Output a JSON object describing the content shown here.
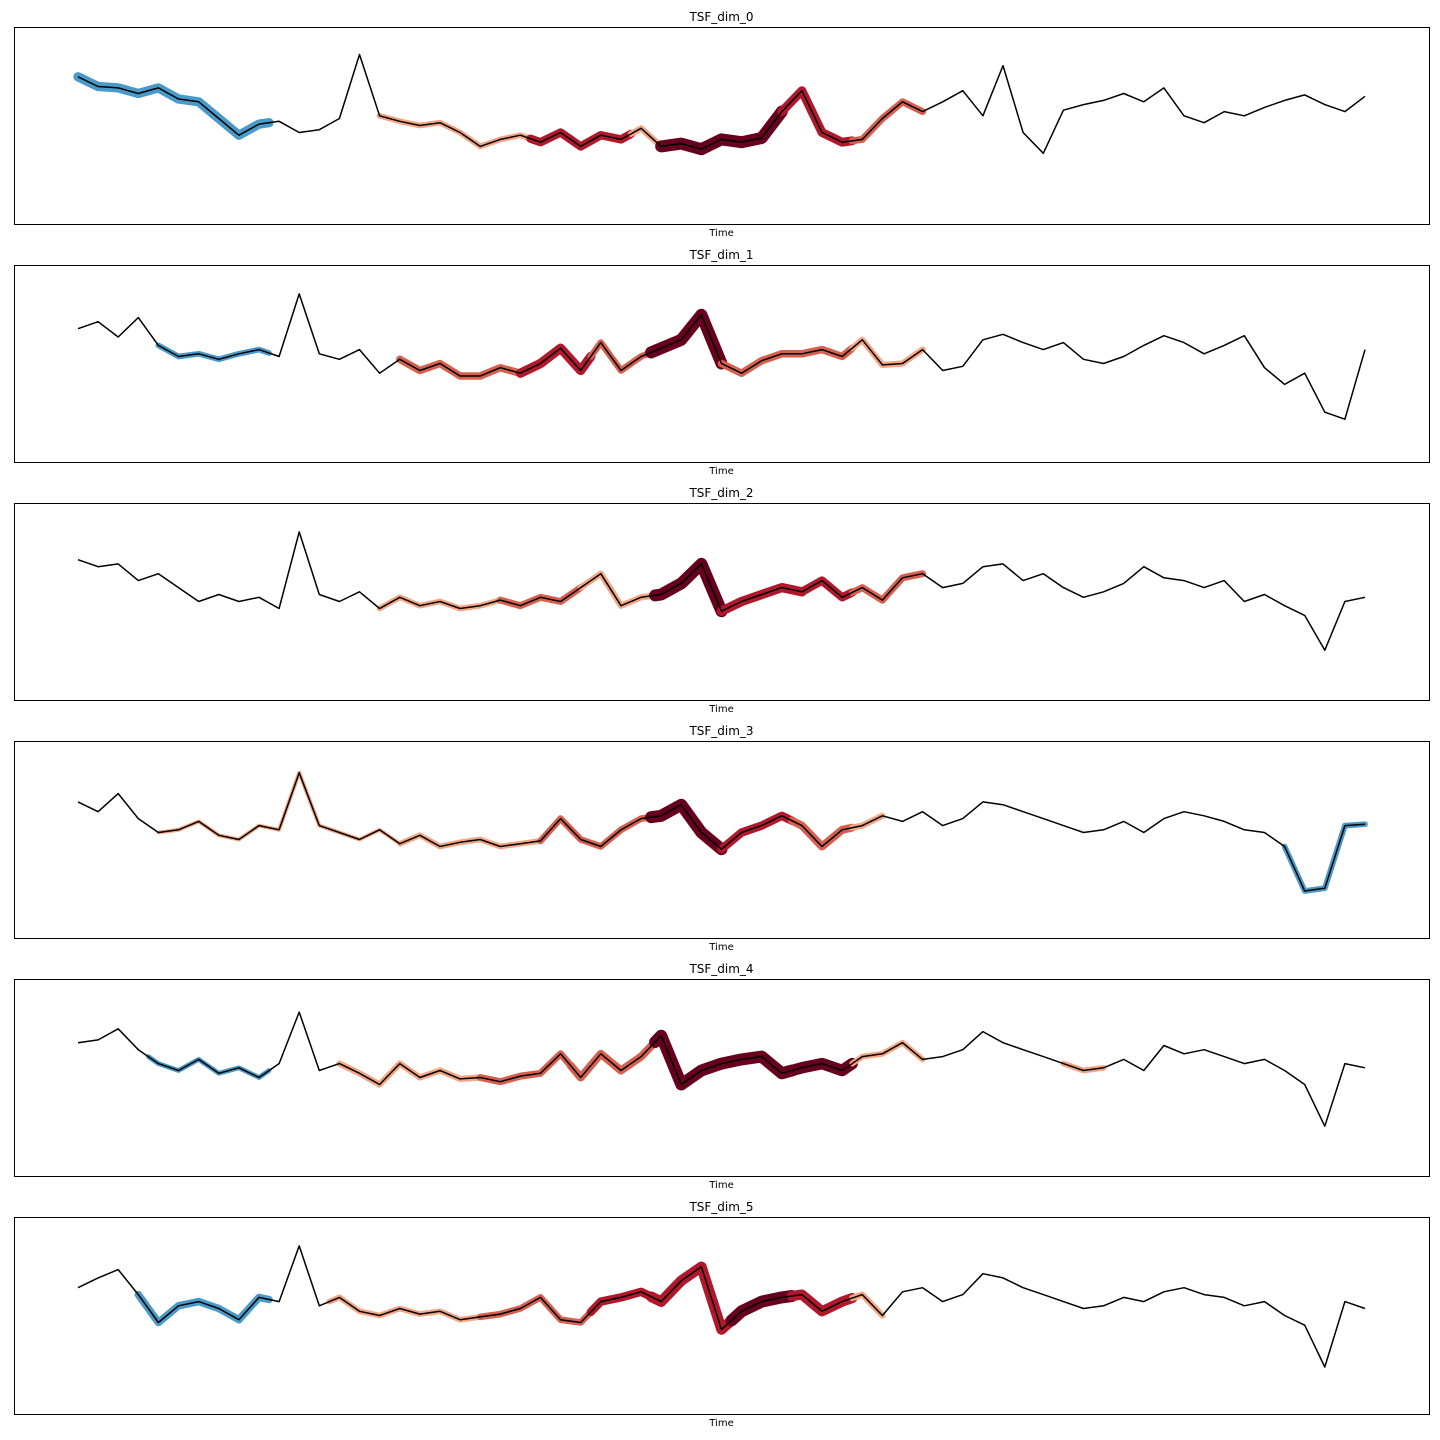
{
  "figure": {
    "type": "line",
    "description_free": true
  },
  "chart_data": [
    {
      "type": "line",
      "title": "TSF_dim_0",
      "xlabel": "Time",
      "ylabel": "",
      "xticks": false,
      "yticks": false,
      "grid": false,
      "x": [
        0,
        10,
        20,
        30,
        40,
        50,
        60,
        70,
        80,
        90,
        100,
        110,
        120,
        130,
        140,
        150,
        160,
        170,
        180,
        190,
        200,
        210,
        220,
        230,
        240,
        250,
        260,
        270,
        280,
        290,
        300,
        310,
        320,
        330,
        340,
        350,
        360,
        370,
        380,
        390,
        400,
        410,
        420,
        430,
        440,
        450,
        460,
        470,
        480,
        490,
        500,
        510,
        520,
        530,
        540,
        550,
        560,
        570,
        580,
        590,
        600,
        610,
        620,
        630,
        640
      ],
      "values": [
        0.8,
        0.73,
        0.72,
        0.68,
        0.72,
        0.64,
        0.62,
        0.5,
        0.38,
        0.46,
        0.48,
        0.4,
        0.42,
        0.5,
        0.96,
        0.52,
        0.48,
        0.45,
        0.47,
        0.4,
        0.3,
        0.35,
        0.38,
        0.33,
        0.4,
        0.3,
        0.38,
        0.35,
        0.43,
        0.3,
        0.32,
        0.28,
        0.35,
        0.33,
        0.36,
        0.55,
        0.7,
        0.4,
        0.33,
        0.35,
        0.5,
        0.62,
        0.55,
        0.62,
        0.7,
        0.52,
        0.88,
        0.4,
        0.25,
        0.56,
        0.6,
        0.63,
        0.68,
        0.62,
        0.72,
        0.52,
        0.47,
        0.55,
        0.52,
        0.58,
        0.63,
        0.67,
        0.6,
        0.55,
        0.66
      ],
      "ylim": [
        -0.2,
        1.1
      ],
      "emphasis": [
        {
          "from": 0,
          "to": 95,
          "level": -0.7
        },
        {
          "from": 150,
          "to": 225,
          "level": 0.3
        },
        {
          "from": 225,
          "to": 275,
          "level": 0.6
        },
        {
          "from": 275,
          "to": 290,
          "level": 0.35
        },
        {
          "from": 290,
          "to": 350,
          "level": 1.0
        },
        {
          "from": 350,
          "to": 385,
          "level": 0.65
        },
        {
          "from": 385,
          "to": 420,
          "level": 0.45
        }
      ]
    },
    {
      "type": "line",
      "title": "TSF_dim_1",
      "xlabel": "Time",
      "ylabel": "",
      "xticks": false,
      "yticks": false,
      "grid": false,
      "x": [
        0,
        10,
        20,
        30,
        40,
        50,
        60,
        70,
        80,
        90,
        100,
        110,
        120,
        130,
        140,
        150,
        160,
        170,
        180,
        190,
        200,
        210,
        220,
        230,
        240,
        250,
        260,
        270,
        280,
        290,
        300,
        310,
        320,
        330,
        340,
        350,
        360,
        370,
        380,
        390,
        400,
        410,
        420,
        430,
        440,
        450,
        460,
        470,
        480,
        490,
        500,
        510,
        520,
        530,
        540,
        550,
        560,
        570,
        580,
        590,
        600,
        610,
        620,
        630,
        640
      ],
      "values": [
        0.7,
        0.75,
        0.64,
        0.78,
        0.58,
        0.5,
        0.52,
        0.48,
        0.52,
        0.55,
        0.5,
        0.95,
        0.52,
        0.48,
        0.55,
        0.38,
        0.48,
        0.4,
        0.45,
        0.36,
        0.36,
        0.42,
        0.38,
        0.45,
        0.56,
        0.4,
        0.6,
        0.4,
        0.5,
        0.56,
        0.62,
        0.8,
        0.45,
        0.38,
        0.47,
        0.52,
        0.52,
        0.55,
        0.5,
        0.62,
        0.44,
        0.45,
        0.55,
        0.4,
        0.43,
        0.62,
        0.66,
        0.6,
        0.55,
        0.6,
        0.48,
        0.45,
        0.5,
        0.58,
        0.65,
        0.6,
        0.52,
        0.58,
        0.65,
        0.42,
        0.3,
        0.38,
        0.1,
        0.05,
        0.55
      ],
      "ylim": [
        -0.2,
        1.1
      ],
      "emphasis": [
        {
          "from": 40,
          "to": 95,
          "level": -0.3
        },
        {
          "from": 160,
          "to": 220,
          "level": 0.5
        },
        {
          "from": 220,
          "to": 255,
          "level": 0.7
        },
        {
          "from": 255,
          "to": 285,
          "level": 0.4
        },
        {
          "from": 285,
          "to": 320,
          "level": 1.0
        },
        {
          "from": 320,
          "to": 385,
          "level": 0.5
        },
        {
          "from": 385,
          "to": 420,
          "level": 0.35
        }
      ]
    },
    {
      "type": "line",
      "title": "TSF_dim_2",
      "xlabel": "Time",
      "ylabel": "",
      "xticks": false,
      "yticks": false,
      "grid": false,
      "x": [
        0,
        10,
        20,
        30,
        40,
        50,
        60,
        70,
        80,
        90,
        100,
        110,
        120,
        130,
        140,
        150,
        160,
        170,
        180,
        190,
        200,
        210,
        220,
        230,
        240,
        250,
        260,
        270,
        280,
        290,
        300,
        310,
        320,
        330,
        340,
        350,
        360,
        370,
        380,
        390,
        400,
        410,
        420,
        430,
        440,
        450,
        460,
        470,
        480,
        490,
        500,
        510,
        520,
        530,
        540,
        550,
        560,
        570,
        580,
        590,
        600,
        610,
        620,
        630,
        640
      ],
      "values": [
        0.75,
        0.7,
        0.72,
        0.6,
        0.65,
        0.55,
        0.45,
        0.5,
        0.45,
        0.48,
        0.4,
        0.95,
        0.5,
        0.45,
        0.52,
        0.4,
        0.48,
        0.42,
        0.45,
        0.4,
        0.42,
        0.46,
        0.42,
        0.48,
        0.45,
        0.55,
        0.65,
        0.42,
        0.48,
        0.5,
        0.58,
        0.72,
        0.38,
        0.45,
        0.5,
        0.55,
        0.52,
        0.6,
        0.48,
        0.55,
        0.46,
        0.62,
        0.65,
        0.55,
        0.58,
        0.7,
        0.72,
        0.6,
        0.65,
        0.55,
        0.48,
        0.52,
        0.58,
        0.7,
        0.62,
        0.6,
        0.55,
        0.6,
        0.45,
        0.5,
        0.42,
        0.35,
        0.1,
        0.45,
        0.48
      ],
      "ylim": [
        -0.2,
        1.1
      ],
      "emphasis": [
        {
          "from": 150,
          "to": 210,
          "level": 0.3
        },
        {
          "from": 210,
          "to": 250,
          "level": 0.45
        },
        {
          "from": 250,
          "to": 287,
          "level": 0.35
        },
        {
          "from": 287,
          "to": 320,
          "level": 1.0
        },
        {
          "from": 320,
          "to": 360,
          "level": 0.7
        },
        {
          "from": 360,
          "to": 385,
          "level": 0.6
        },
        {
          "from": 385,
          "to": 420,
          "level": 0.45
        }
      ]
    },
    {
      "type": "line",
      "title": "TSF_dim_3",
      "xlabel": "Time",
      "ylabel": "",
      "xticks": false,
      "yticks": false,
      "grid": false,
      "x": [
        0,
        10,
        20,
        30,
        40,
        50,
        60,
        70,
        80,
        90,
        100,
        110,
        120,
        130,
        140,
        150,
        160,
        170,
        180,
        190,
        200,
        210,
        220,
        230,
        240,
        250,
        260,
        270,
        280,
        290,
        300,
        310,
        320,
        330,
        340,
        350,
        360,
        370,
        380,
        390,
        400,
        410,
        420,
        430,
        440,
        450,
        460,
        470,
        480,
        490,
        500,
        510,
        520,
        530,
        540,
        550,
        560,
        570,
        580,
        590,
        600,
        610,
        620,
        630,
        640
      ],
      "values": [
        0.72,
        0.65,
        0.78,
        0.6,
        0.5,
        0.52,
        0.58,
        0.48,
        0.45,
        0.55,
        0.52,
        0.93,
        0.55,
        0.5,
        0.45,
        0.52,
        0.42,
        0.48,
        0.4,
        0.43,
        0.45,
        0.4,
        0.42,
        0.44,
        0.6,
        0.45,
        0.4,
        0.52,
        0.6,
        0.62,
        0.7,
        0.5,
        0.38,
        0.5,
        0.55,
        0.62,
        0.55,
        0.4,
        0.52,
        0.55,
        0.62,
        0.58,
        0.65,
        0.55,
        0.6,
        0.72,
        0.7,
        0.65,
        0.6,
        0.55,
        0.5,
        0.52,
        0.58,
        0.5,
        0.6,
        0.65,
        0.62,
        0.58,
        0.52,
        0.5,
        0.4,
        0.08,
        0.1,
        0.55,
        0.56
      ],
      "ylim": [
        -0.2,
        1.1
      ],
      "emphasis": [
        {
          "from": 40,
          "to": 160,
          "level": 0.1
        },
        {
          "from": 160,
          "to": 230,
          "level": 0.3
        },
        {
          "from": 230,
          "to": 285,
          "level": 0.4
        },
        {
          "from": 285,
          "to": 320,
          "level": 1.0
        },
        {
          "from": 320,
          "to": 355,
          "level": 0.6
        },
        {
          "from": 355,
          "to": 385,
          "level": 0.55
        },
        {
          "from": 385,
          "to": 400,
          "level": 0.35
        },
        {
          "from": 600,
          "to": 640,
          "level": -0.3
        }
      ]
    },
    {
      "type": "line",
      "title": "TSF_dim_4",
      "xlabel": "Time",
      "ylabel": "",
      "xticks": false,
      "yticks": false,
      "grid": false,
      "x": [
        0,
        10,
        20,
        30,
        40,
        50,
        60,
        70,
        80,
        90,
        100,
        110,
        120,
        130,
        140,
        150,
        160,
        170,
        180,
        190,
        200,
        210,
        220,
        230,
        240,
        250,
        260,
        270,
        280,
        290,
        300,
        310,
        320,
        330,
        340,
        350,
        360,
        370,
        380,
        390,
        400,
        410,
        420,
        430,
        440,
        450,
        460,
        470,
        480,
        490,
        500,
        510,
        520,
        530,
        540,
        550,
        560,
        570,
        580,
        590,
        600,
        610,
        620,
        630,
        640
      ],
      "values": [
        0.7,
        0.72,
        0.8,
        0.65,
        0.55,
        0.5,
        0.58,
        0.48,
        0.52,
        0.45,
        0.55,
        0.92,
        0.5,
        0.55,
        0.48,
        0.4,
        0.55,
        0.45,
        0.5,
        0.44,
        0.45,
        0.42,
        0.46,
        0.48,
        0.62,
        0.45,
        0.62,
        0.5,
        0.6,
        0.75,
        0.4,
        0.5,
        0.55,
        0.58,
        0.6,
        0.48,
        0.52,
        0.55,
        0.5,
        0.6,
        0.62,
        0.7,
        0.58,
        0.6,
        0.65,
        0.78,
        0.7,
        0.65,
        0.6,
        0.55,
        0.5,
        0.52,
        0.58,
        0.5,
        0.68,
        0.62,
        0.65,
        0.6,
        0.55,
        0.58,
        0.5,
        0.4,
        0.1,
        0.55,
        0.52
      ],
      "ylim": [
        -0.2,
        1.1
      ],
      "emphasis": [
        {
          "from": 35,
          "to": 95,
          "level": -0.2
        },
        {
          "from": 130,
          "to": 200,
          "level": 0.35
        },
        {
          "from": 200,
          "to": 245,
          "level": 0.45
        },
        {
          "from": 245,
          "to": 287,
          "level": 0.55
        },
        {
          "from": 287,
          "to": 355,
          "level": 1.0
        },
        {
          "from": 355,
          "to": 385,
          "level": 0.95
        },
        {
          "from": 385,
          "to": 420,
          "level": 0.3
        },
        {
          "from": 490,
          "to": 510,
          "level": 0.3
        }
      ]
    },
    {
      "type": "line",
      "title": "TSF_dim_5",
      "xlabel": "Time",
      "ylabel": "",
      "xticks": false,
      "yticks": false,
      "grid": false,
      "x": [
        0,
        10,
        20,
        30,
        40,
        50,
        60,
        70,
        80,
        90,
        100,
        110,
        120,
        130,
        140,
        150,
        160,
        170,
        180,
        190,
        200,
        210,
        220,
        230,
        240,
        250,
        260,
        270,
        280,
        290,
        300,
        310,
        320,
        330,
        340,
        350,
        360,
        370,
        380,
        390,
        400,
        410,
        420,
        430,
        440,
        450,
        460,
        470,
        480,
        490,
        500,
        510,
        520,
        530,
        540,
        550,
        560,
        570,
        580,
        590,
        600,
        610,
        620,
        630,
        640
      ],
      "values": [
        0.65,
        0.72,
        0.78,
        0.6,
        0.4,
        0.52,
        0.55,
        0.5,
        0.42,
        0.58,
        0.55,
        0.95,
        0.52,
        0.58,
        0.48,
        0.45,
        0.5,
        0.46,
        0.48,
        0.42,
        0.44,
        0.46,
        0.5,
        0.58,
        0.42,
        0.4,
        0.55,
        0.58,
        0.62,
        0.55,
        0.7,
        0.8,
        0.35,
        0.48,
        0.55,
        0.58,
        0.6,
        0.48,
        0.55,
        0.6,
        0.45,
        0.62,
        0.65,
        0.55,
        0.6,
        0.75,
        0.72,
        0.65,
        0.6,
        0.55,
        0.5,
        0.52,
        0.58,
        0.55,
        0.62,
        0.65,
        0.6,
        0.58,
        0.52,
        0.55,
        0.45,
        0.38,
        0.08,
        0.55,
        0.5
      ],
      "ylim": [
        -0.2,
        1.1
      ],
      "emphasis": [
        {
          "from": 30,
          "to": 95,
          "level": -0.5
        },
        {
          "from": 125,
          "to": 200,
          "level": 0.3
        },
        {
          "from": 200,
          "to": 255,
          "level": 0.4
        },
        {
          "from": 255,
          "to": 285,
          "level": 0.6
        },
        {
          "from": 285,
          "to": 325,
          "level": 0.85
        },
        {
          "from": 325,
          "to": 355,
          "level": 1.0
        },
        {
          "from": 355,
          "to": 385,
          "level": 0.8
        },
        {
          "from": 385,
          "to": 400,
          "level": 0.35
        }
      ]
    }
  ],
  "colors": {
    "line": "#000000",
    "frame": "#000000",
    "background": "#ffffff",
    "emphasis_negative": "#4a9ac9",
    "emphasis_low": "#f4a582",
    "emphasis_mid": "#d6604d",
    "emphasis_high": "#b2182b",
    "emphasis_max": "#67001f"
  }
}
